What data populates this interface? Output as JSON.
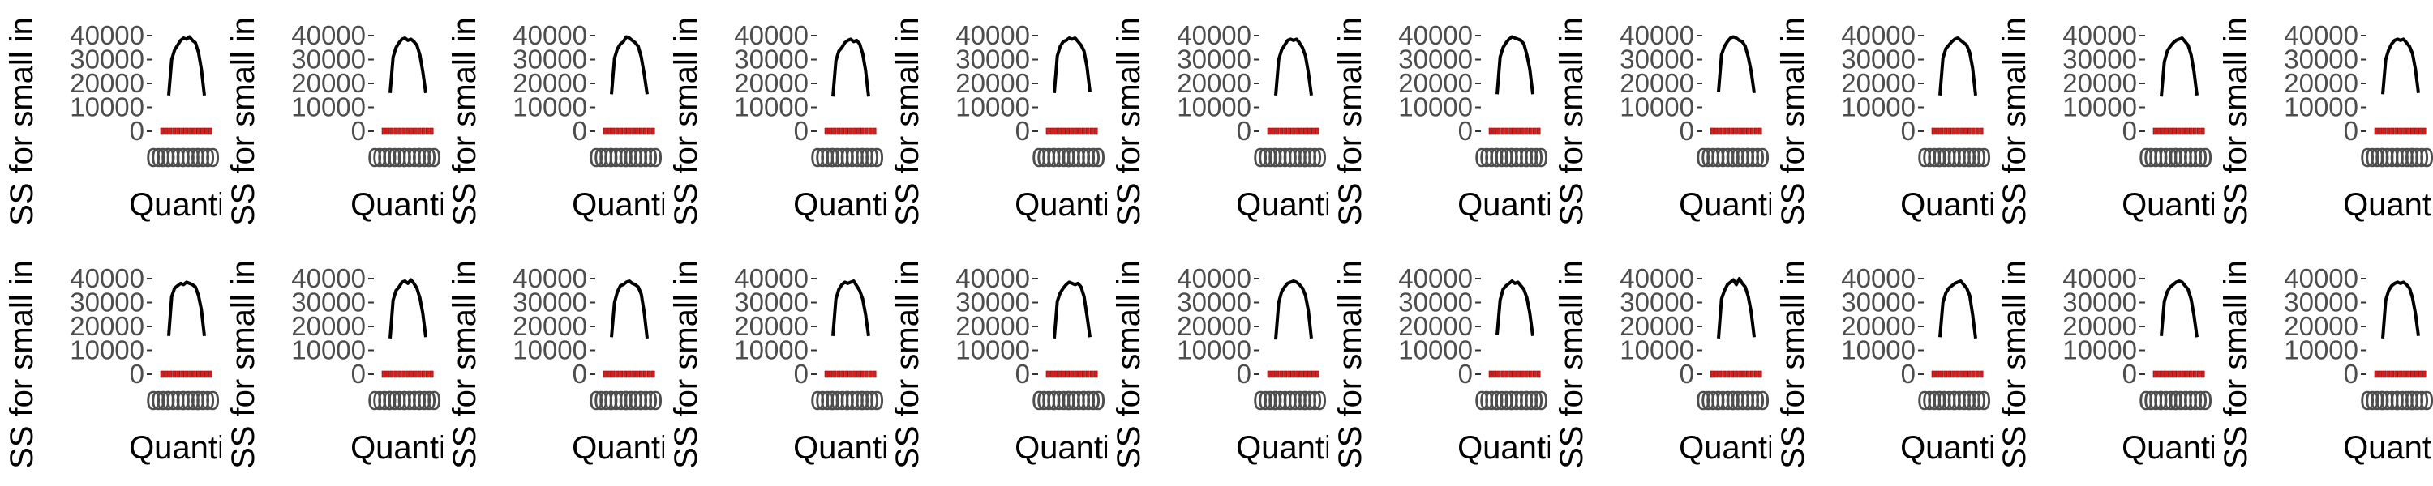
{
  "chart_data": {
    "type": "line",
    "layout": {
      "rows": 2,
      "cols": 11
    },
    "panels": [
      {
        "id": 1,
        "values": [
          15000,
          30000,
          34000,
          36000,
          38000,
          39000,
          38500,
          39500,
          38000,
          37000,
          33000,
          26000,
          15000
        ]
      },
      {
        "id": 2,
        "values": [
          16000,
          31000,
          35000,
          37000,
          38500,
          39000,
          38000,
          38500,
          37500,
          36000,
          32000,
          25000,
          16000
        ]
      },
      {
        "id": 3,
        "values": [
          15500,
          30500,
          34500,
          36500,
          37500,
          39500,
          39000,
          38000,
          37000,
          35500,
          31000,
          24000,
          15500
        ]
      },
      {
        "id": 4,
        "values": [
          14500,
          29500,
          33500,
          35000,
          37000,
          38000,
          38500,
          37500,
          38000,
          36500,
          32500,
          25500,
          14500
        ]
      },
      {
        "id": 5,
        "values": [
          16000,
          31500,
          35500,
          37500,
          38000,
          39000,
          38500,
          39000,
          37500,
          36000,
          33500,
          27000,
          16500
        ]
      },
      {
        "id": 6,
        "values": [
          15000,
          30000,
          34000,
          36000,
          38000,
          38500,
          38000,
          38500,
          37000,
          35000,
          31500,
          24500,
          15000
        ]
      },
      {
        "id": 7,
        "values": [
          15500,
          31000,
          35000,
          37000,
          38500,
          39500,
          39000,
          38500,
          38000,
          36500,
          32000,
          26000,
          15500
        ]
      },
      {
        "id": 8,
        "values": [
          16500,
          32000,
          35500,
          37500,
          39000,
          39500,
          39000,
          38000,
          37500,
          35500,
          31000,
          25000,
          16000
        ]
      },
      {
        "id": 9,
        "values": [
          15000,
          30500,
          34500,
          36000,
          37500,
          38500,
          39000,
          38000,
          37000,
          36000,
          33000,
          26500,
          15000
        ]
      },
      {
        "id": 10,
        "values": [
          14500,
          29000,
          33500,
          35500,
          37000,
          38000,
          38500,
          39000,
          37500,
          36000,
          32000,
          25000,
          15000
        ]
      },
      {
        "id": 11,
        "values": [
          15500,
          30000,
          34000,
          36500,
          38000,
          38500,
          38000,
          38500,
          37000,
          35500,
          32500,
          26000,
          16000
        ]
      },
      {
        "id": 12,
        "values": [
          16000,
          32500,
          36000,
          37000,
          38000,
          37500,
          38500,
          38000,
          37500,
          36500,
          33000,
          27000,
          16000
        ]
      },
      {
        "id": 13,
        "values": [
          15000,
          31000,
          35000,
          36500,
          38500,
          39000,
          38000,
          39500,
          38000,
          36000,
          32000,
          25500,
          15500
        ]
      },
      {
        "id": 14,
        "values": [
          15500,
          30000,
          34500,
          37000,
          37500,
          38500,
          39000,
          38000,
          37500,
          36500,
          33500,
          26000,
          15000
        ]
      },
      {
        "id": 15,
        "values": [
          16000,
          31500,
          35500,
          37500,
          38500,
          38000,
          38500,
          39000,
          37000,
          35000,
          31500,
          25000,
          16000
        ]
      },
      {
        "id": 16,
        "values": [
          15000,
          30500,
          34000,
          36000,
          37500,
          38500,
          38000,
          37500,
          38000,
          36500,
          32500,
          24500,
          15500
        ]
      },
      {
        "id": 17,
        "values": [
          14500,
          30000,
          34500,
          36500,
          38000,
          38500,
          39000,
          38500,
          37500,
          36000,
          33000,
          26500,
          15000
        ]
      },
      {
        "id": 18,
        "values": [
          16500,
          31000,
          35500,
          37000,
          38000,
          39000,
          38000,
          38500,
          37000,
          35500,
          32000,
          25500,
          16000
        ]
      },
      {
        "id": 19,
        "values": [
          15000,
          31500,
          35000,
          37500,
          38500,
          39500,
          37500,
          40000,
          38000,
          36500,
          32500,
          26000,
          15500
        ]
      },
      {
        "id": 20,
        "values": [
          15500,
          30000,
          34000,
          36000,
          37000,
          38000,
          38500,
          39000,
          37500,
          36000,
          33000,
          25000,
          15000
        ]
      },
      {
        "id": 21,
        "values": [
          16000,
          30500,
          34500,
          36500,
          37500,
          38500,
          39000,
          38500,
          37000,
          35500,
          31500,
          24500,
          15500
        ]
      },
      {
        "id": 22,
        "values": [
          15000,
          31000,
          35000,
          37000,
          38000,
          38500,
          38000,
          38500,
          37500,
          36000,
          32000,
          25500,
          16000
        ]
      }
    ],
    "bar_count": 13,
    "bar_value": 0,
    "ylim": [
      0,
      40000
    ],
    "yticks": [
      0,
      10000,
      20000,
      30000,
      40000
    ],
    "ytick_labels": [
      "0",
      "10000",
      "20000",
      "30000",
      "40000"
    ],
    "xlabel": "Quanti",
    "ylabel": "SS for small in",
    "x_tick_text": "0000",
    "colors": {
      "line": "#000000",
      "bars": "#d62020",
      "tick_label": "#4d4d4d"
    }
  }
}
